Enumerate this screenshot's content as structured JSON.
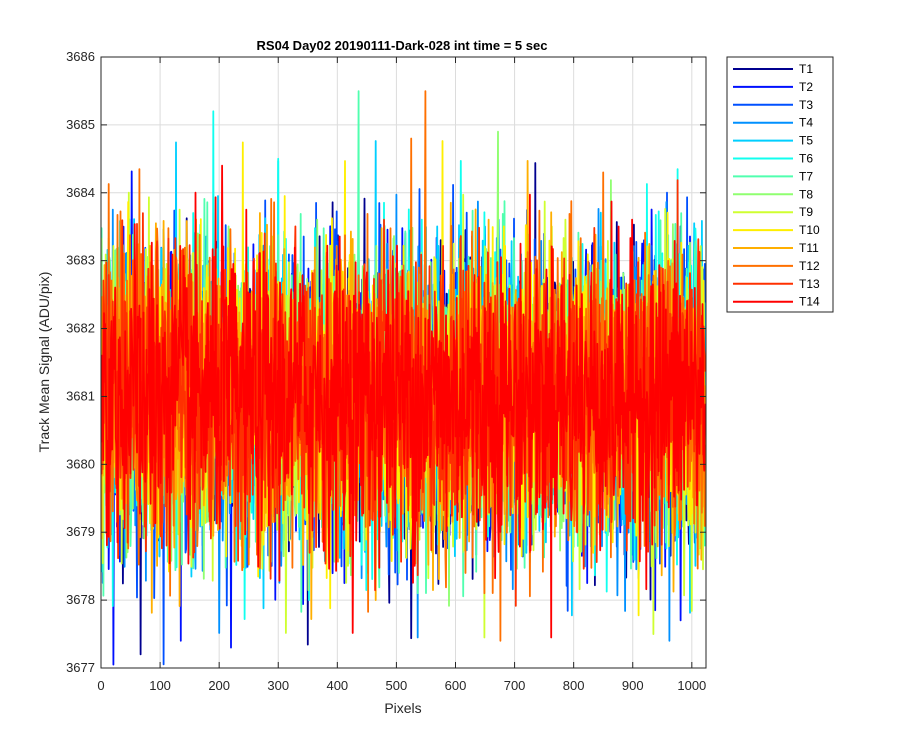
{
  "chart_data": {
    "type": "line",
    "title": "RS04 Day02 20190111-Dark-028 int time = 5 sec",
    "xlabel": "Pixels",
    "ylabel": "Track Mean Signal (ADU/pix)",
    "xlim": [
      0,
      1024
    ],
    "ylim": [
      3677,
      3686
    ],
    "xticks": [
      "0",
      "100",
      "200",
      "300",
      "400",
      "500",
      "600",
      "700",
      "800",
      "900",
      "1000"
    ],
    "yticks": [
      "3677",
      "3678",
      "3679",
      "3680",
      "3681",
      "3682",
      "3683",
      "3684",
      "3685",
      "3686"
    ],
    "grid": true,
    "legend_position": "outside-top-right",
    "mean": 3681.0,
    "approx_std": 1.05,
    "n_points_per_series": 1024,
    "series": [
      {
        "name": "T1",
        "color": "#00008f"
      },
      {
        "name": "T2",
        "color": "#0010ff"
      },
      {
        "name": "T3",
        "color": "#0050ff"
      },
      {
        "name": "T4",
        "color": "#0090ff"
      },
      {
        "name": "T5",
        "color": "#00cfff"
      },
      {
        "name": "T6",
        "color": "#10ffef"
      },
      {
        "name": "T7",
        "color": "#50ffaf"
      },
      {
        "name": "T8",
        "color": "#8fff70"
      },
      {
        "name": "T9",
        "color": "#cfff30"
      },
      {
        "name": "T10",
        "color": "#ffef00"
      },
      {
        "name": "T11",
        "color": "#ffaf00"
      },
      {
        "name": "T12",
        "color": "#ff7000"
      },
      {
        "name": "T13",
        "color": "#ff3000"
      },
      {
        "name": "T14",
        "color": "#ff0000"
      }
    ],
    "notable_extremes": [
      {
        "series": "T6",
        "x": 190,
        "y": 3685.2
      },
      {
        "series": "T8",
        "x": 672,
        "y": 3684.9
      },
      {
        "series": "T12",
        "x": 525,
        "y": 3684.8
      },
      {
        "series": "T6",
        "x": 300,
        "y": 3684.5
      },
      {
        "series": "T14",
        "x": 205,
        "y": 3684.4
      },
      {
        "series": "T12",
        "x": 850,
        "y": 3684.3
      },
      {
        "series": "T1",
        "x": 67,
        "y": 3677.2
      },
      {
        "series": "T2",
        "x": 220,
        "y": 3677.3
      },
      {
        "series": "T12",
        "x": 676,
        "y": 3677.4
      },
      {
        "series": "T4",
        "x": 962,
        "y": 3677.4
      },
      {
        "series": "T2",
        "x": 135,
        "y": 3677.4
      },
      {
        "series": "T9",
        "x": 935,
        "y": 3677.5
      }
    ]
  }
}
